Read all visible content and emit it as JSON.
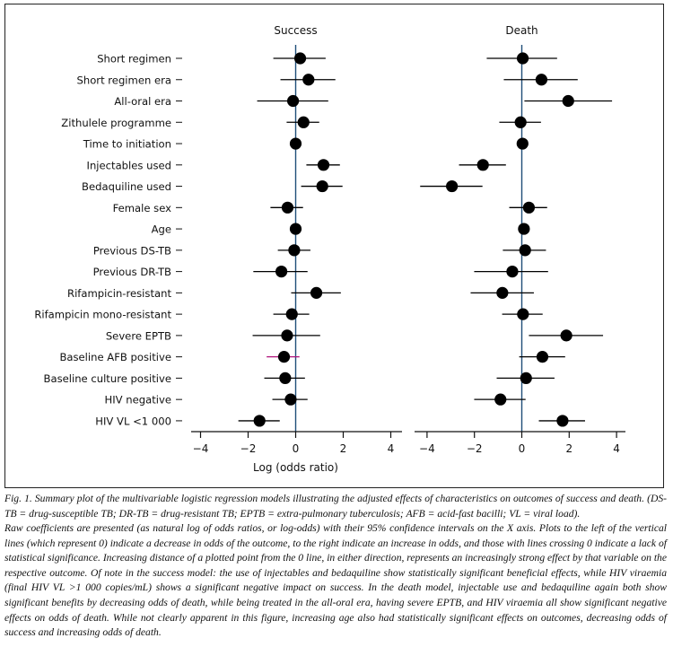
{
  "chart_data": {
    "type": "forest",
    "xlabel": "Log (odds ratio)",
    "xlim": [
      -4,
      4
    ],
    "xticks": [
      "−4",
      "−2",
      "0",
      "2",
      "4"
    ],
    "xtick_values": [
      -4,
      -2,
      0,
      2,
      4
    ],
    "grid": false,
    "reference_line": 0,
    "colors": {
      "point": "#000000",
      "ci": "#000000",
      "ci_highlight": "#b0127a",
      "zero_line": "#1f4e79"
    },
    "categories": [
      "Short regimen",
      "Short regimen era",
      "All-oral era",
      "Zithulele programme",
      "Time to initiation",
      "Injectables used",
      "Bedaquiline used",
      "Female sex",
      "Age",
      "Previous DS-TB",
      "Previous DR-TB",
      "Rifampicin-resistant",
      "Rifampicin mono-resistant",
      "Severe EPTB",
      "Baseline AFB positive",
      "Baseline culture positive",
      "HIV negative",
      "HIV VL <1 000"
    ],
    "panels": [
      {
        "name": "Success",
        "estimate": [
          0.19,
          0.54,
          -0.11,
          0.33,
          0.0,
          1.17,
          1.12,
          -0.34,
          0.0,
          -0.06,
          -0.6,
          0.87,
          -0.16,
          -0.36,
          -0.49,
          -0.44,
          -0.21,
          -1.52
        ],
        "ci_low": [
          -0.94,
          -0.64,
          -1.62,
          -0.38,
          -0.05,
          0.45,
          0.23,
          -1.06,
          -0.05,
          -0.75,
          -1.78,
          -0.19,
          -0.94,
          -1.81,
          -1.22,
          -1.32,
          -0.98,
          -2.41
        ],
        "ci_high": [
          1.26,
          1.67,
          1.37,
          0.99,
          0.05,
          1.86,
          1.97,
          0.31,
          0.05,
          0.62,
          0.5,
          1.9,
          0.57,
          1.03,
          0.16,
          0.39,
          0.5,
          -0.67
        ],
        "highlight": [
          14
        ]
      },
      {
        "name": "Death",
        "estimate": [
          0.04,
          0.83,
          1.96,
          -0.05,
          0.03,
          -1.64,
          -2.95,
          0.3,
          0.09,
          0.14,
          -0.4,
          -0.82,
          0.05,
          1.88,
          0.87,
          0.18,
          -0.9,
          1.72
        ],
        "ci_low": [
          -1.48,
          -0.76,
          0.11,
          -0.95,
          -0.02,
          -2.65,
          -4.29,
          -0.53,
          0.04,
          -0.8,
          -2.01,
          -2.16,
          -0.83,
          0.3,
          -0.11,
          -1.06,
          -2.01,
          0.72
        ],
        "ci_high": [
          1.49,
          2.36,
          3.81,
          0.81,
          0.08,
          -0.67,
          -1.66,
          1.07,
          0.14,
          1.02,
          1.11,
          0.51,
          0.88,
          3.43,
          1.83,
          1.38,
          0.16,
          2.67
        ],
        "highlight": []
      }
    ]
  },
  "caption": {
    "figure": "Fig. 1. Summary plot of the multivariable logistic regression models illustrating the adjusted effects of characteristics on outcomes of success and death. (DS-TB = drug-susceptible TB; DR-TB = drug-resistant TB; EPTB = extra-pulmonary tuberculosis; AFB = acid-fast bacilli; VL = viral load).",
    "notes": "Raw coefficients are presented (as natural log of odds ratios, or log-odds) with their 95% confidence intervals on the X axis. Plots to the left of the vertical lines (which represent 0) indicate a decrease in odds of the outcome, to the right indicate an increase in odds, and those with lines crossing 0 indicate a lack of statistical significance. Increasing distance of a plotted point from the 0 line, in either direction, represents an increasingly strong effect by that variable on the respective outcome. Of note in the success model: the use of injectables and bedaquiline show statistically significant beneficial effects, while HIV viraemia (final HIV VL >1 000 copies/mL) shows a significant negative impact on success. In the death model, injectable use and bedaquiline again both show significant benefits by decreasing odds of death, while being treated in the all-oral era, having severe EPTB, and HIV viraemia all show significant negative effects on odds of death. While not clearly apparent in this figure, increasing age also had statistically significant effects on outcomes, decreasing odds of success and increasing odds of death."
  }
}
